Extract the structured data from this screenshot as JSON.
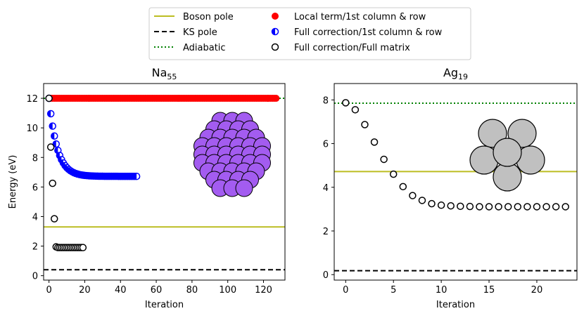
{
  "legend": {
    "items": [
      {
        "label": "Boson pole",
        "kind": "line",
        "color": "#bcbd22",
        "dash": "solid"
      },
      {
        "label": "KS pole",
        "kind": "line",
        "color": "#000000",
        "dash": "dashed"
      },
      {
        "label": "Adiabatic",
        "kind": "line",
        "color": "#008000",
        "dash": "dotted"
      },
      {
        "label": "Local term/1st column & row",
        "kind": "marker",
        "color": "#ff0000",
        "fill": "full"
      },
      {
        "label": "Full correction/1st column & row",
        "kind": "marker",
        "color": "#0000ff",
        "fill": "half"
      },
      {
        "label": "Full correction/Full matrix",
        "kind": "marker",
        "color": "#000000",
        "fill": "none"
      }
    ]
  },
  "chart_data": [
    {
      "type": "scatter",
      "title": "Na",
      "title_subscript": "55",
      "xlabel": "Iteration",
      "ylabel": "Energy (eV)",
      "xlim": [
        -3,
        132
      ],
      "ylim": [
        -0.3,
        13.0
      ],
      "xticks": [
        0,
        20,
        40,
        60,
        80,
        100,
        120
      ],
      "yticks": [
        0,
        2,
        4,
        6,
        8,
        10,
        12
      ],
      "hlines": {
        "boson_pole": 3.3,
        "ks_pole": 0.4,
        "adiabatic": 12.0
      },
      "series": [
        {
          "name": "Local term/1st column & row",
          "rule": "constant",
          "value": 12.0,
          "x_start": 0,
          "x_end": 127
        },
        {
          "name": "Full correction/1st column & row",
          "rule": "exp_decay",
          "start": 12.0,
          "end": 6.72,
          "rate": 0.22,
          "x_start": 0,
          "x_end": 49
        },
        {
          "name": "Full correction/Full matrix",
          "x": [
            0,
            1,
            2,
            3,
            4,
            5,
            6,
            7,
            8,
            9,
            10,
            11,
            12,
            13,
            14,
            15,
            16,
            17,
            18,
            19
          ],
          "y": [
            12.0,
            8.7,
            6.25,
            3.85,
            1.95,
            1.9,
            1.9,
            1.9,
            1.9,
            1.9,
            1.9,
            1.9,
            1.9,
            1.9,
            1.9,
            1.9,
            1.9,
            1.9,
            1.9,
            1.9
          ]
        }
      ],
      "cluster_image": "na55-cluster-icon"
    },
    {
      "type": "scatter",
      "title": "Ag",
      "title_subscript": "19",
      "xlabel": "Iteration",
      "ylabel": "",
      "xlim": [
        -1.2,
        24.2
      ],
      "ylim": [
        -0.25,
        8.75
      ],
      "xticks": [
        0,
        5,
        10,
        15,
        20
      ],
      "yticks": [
        0,
        2,
        4,
        6,
        8
      ],
      "hlines": {
        "boson_pole": 4.72,
        "ks_pole": 0.18,
        "adiabatic": 7.85
      },
      "series": [
        {
          "name": "Full correction/Full matrix",
          "x": [
            0,
            1,
            2,
            3,
            4,
            5,
            6,
            7,
            8,
            9,
            10,
            11,
            12,
            13,
            14,
            15,
            16,
            17,
            18,
            19,
            20,
            21,
            22,
            23
          ],
          "y": [
            7.87,
            7.55,
            6.87,
            6.07,
            5.28,
            4.6,
            4.03,
            3.62,
            3.4,
            3.25,
            3.18,
            3.15,
            3.13,
            3.12,
            3.11,
            3.11,
            3.11,
            3.11,
            3.11,
            3.11,
            3.11,
            3.11,
            3.11,
            3.11
          ]
        }
      ],
      "cluster_image": "ag19-cluster-icon"
    }
  ]
}
